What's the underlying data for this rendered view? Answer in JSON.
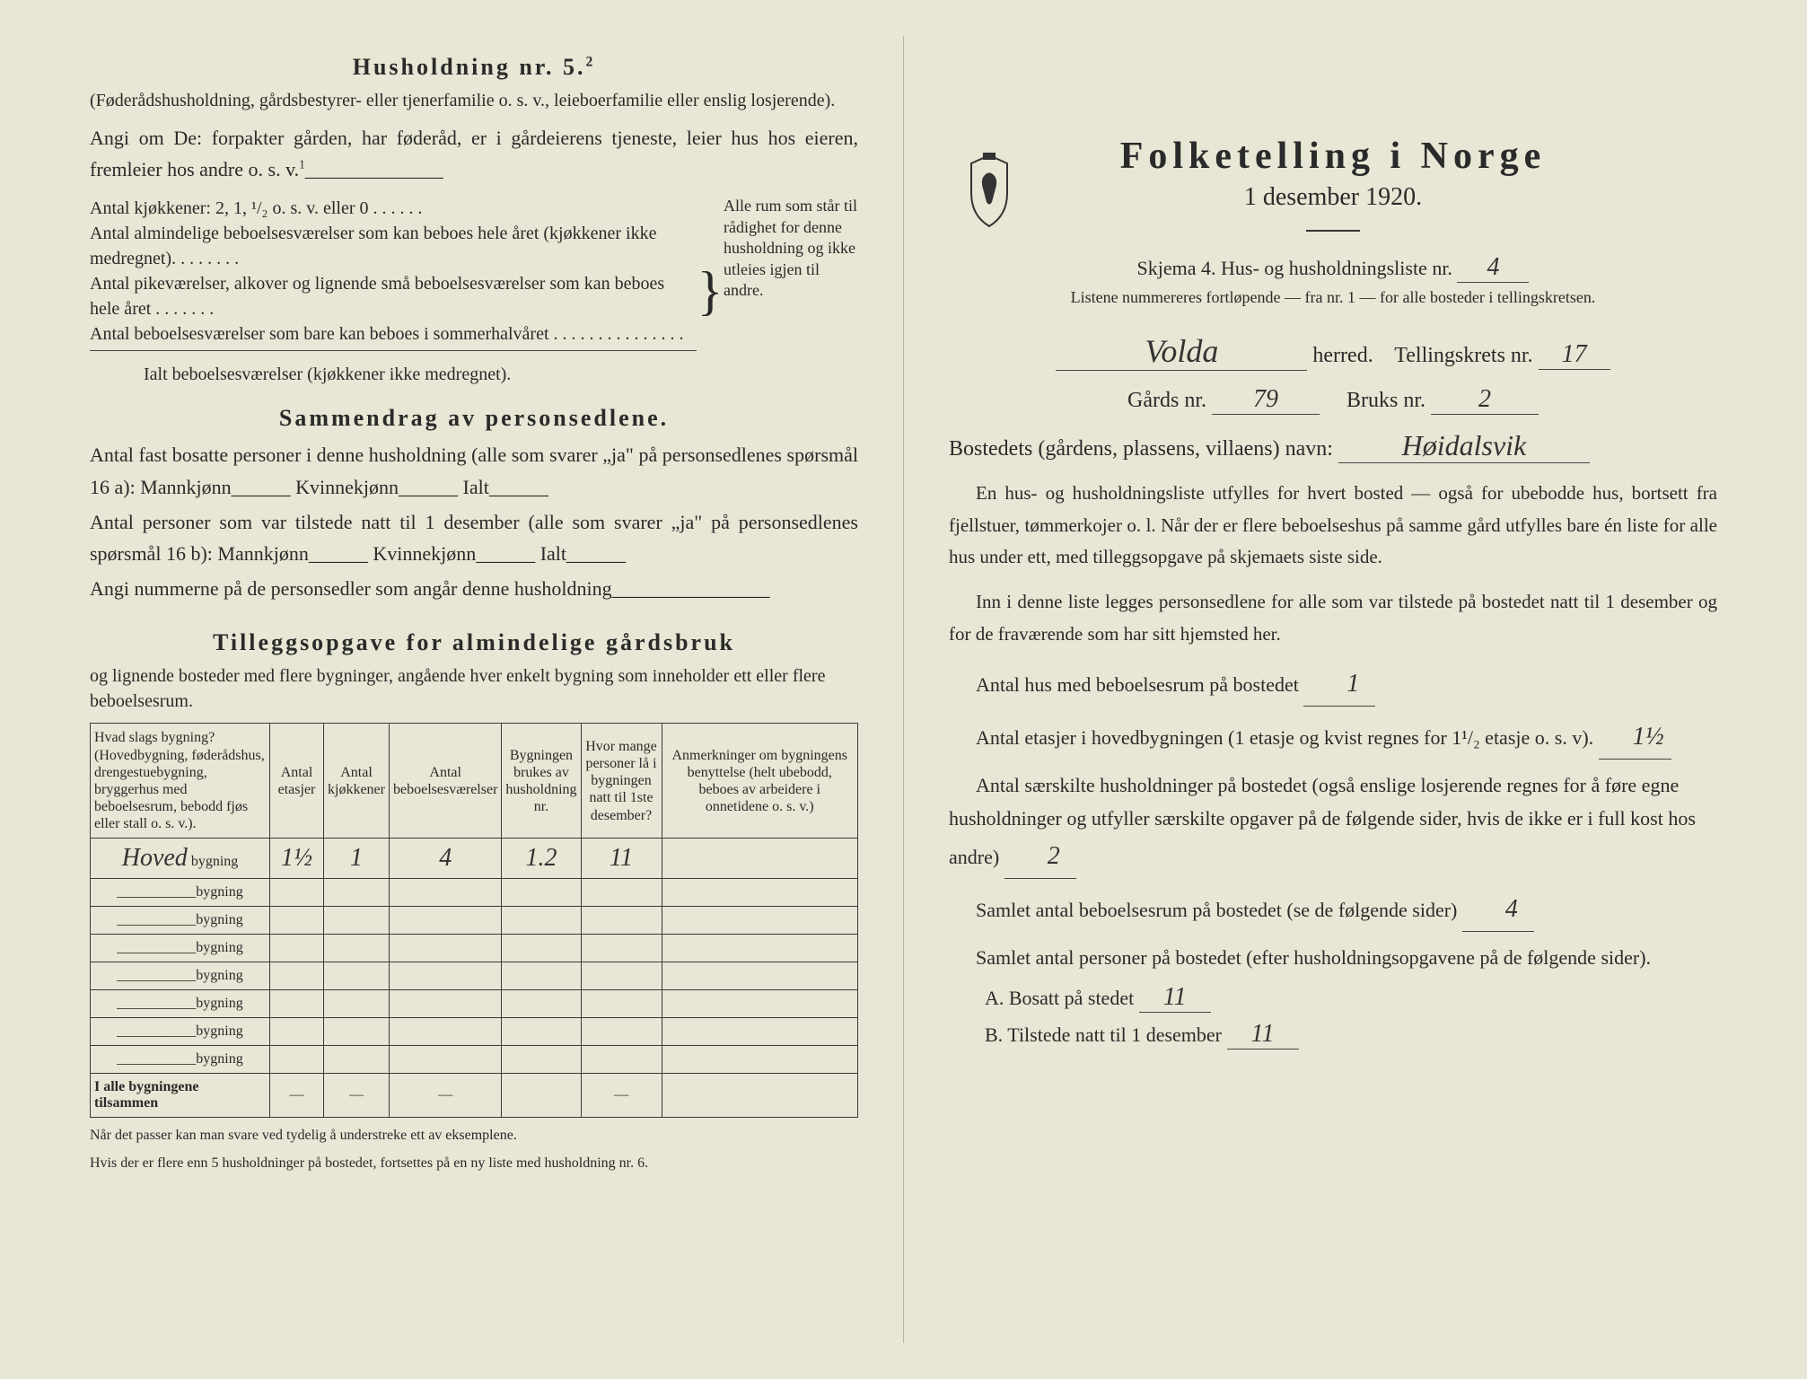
{
  "left": {
    "husholdning_title": "Husholdning nr. 5.",
    "husholdning_sup": "2",
    "husholdning_paren": "(Føderådshusholdning, gårdsbestyrer- eller tjenerfamilie o. s. v., leieboerfamilie eller enslig losjerende).",
    "angi_line": "Angi om De: forpakter gården, har føderåd, er i gårdeierens tjeneste, leier hus hos eieren, fremleier hos andre o. s. v.",
    "angi_sup": "1",
    "brace_items": [
      "Antal kjøkkener: 2, 1, ¹/₂ o. s. v. eller 0 . . . . . .",
      "Antal almindelige beboelsesværelser som kan beboes hele året (kjøkkener ikke medregnet). . . . . . . .",
      "Antal pikeværelser, alkover og lignende små beboelsesværelser som kan beboes hele året . . . . . . .",
      "Antal beboelsesværelser som bare kan beboes i sommerhalvåret . . . . . . . . . . . . . . .",
      "Ialt beboelsesværelser (kjøkkener ikke medregnet)."
    ],
    "brace_right_text": "Alle rum som står til rådighet for denne husholdning og ikke utleies igjen til andre.",
    "sammen_title": "Sammendrag av personsedlene.",
    "sammen_p1": "Antal fast bosatte personer i denne husholdning (alle som svarer „ja\" på personsedlenes spørsmål 16 a): Mannkjønn______ Kvinnekjønn______ Ialt______",
    "sammen_p2": "Antal personer som var tilstede natt til 1 desember (alle som svarer „ja\" på personsedlenes spørsmål 16 b): Mannkjønn______ Kvinnekjønn______ Ialt______",
    "sammen_p3": "Angi nummerne på de personsedler som angår denne husholdning________________",
    "tillegg_title": "Tilleggsopgave for almindelige gårdsbruk",
    "tillegg_sub": "og lignende bosteder med flere bygninger, angående hver enkelt bygning som inneholder ett eller flere beboelsesrum.",
    "table": {
      "headers": [
        "Hvad slags bygning?\n(Hovedbygning, føderådshus, drengestuebygning, bryggerhus med beboelsesrum, bebodd fjøs eller stall o. s. v.).",
        "Antal etasjer",
        "Antal kjøkkener",
        "Antal beboelsesværelser",
        "Bygningen brukes av husholdning nr.",
        "Hvor mange personer lå i bygningen natt til 1ste desember?",
        "Anmerkninger om bygningens benyttelse (helt ubebodd, beboes av arbeidere i onnetidene o. s. v.)"
      ],
      "rows": [
        {
          "label": "Hoved",
          "suffix": "bygning",
          "cells": [
            "1½",
            "1",
            "4",
            "1.2",
            "11",
            ""
          ]
        },
        {
          "label": "",
          "suffix": "bygning",
          "cells": [
            "",
            "",
            "",
            "",
            "",
            ""
          ]
        },
        {
          "label": "",
          "suffix": "bygning",
          "cells": [
            "",
            "",
            "",
            "",
            "",
            ""
          ]
        },
        {
          "label": "",
          "suffix": "bygning",
          "cells": [
            "",
            "",
            "",
            "",
            "",
            ""
          ]
        },
        {
          "label": "",
          "suffix": "bygning",
          "cells": [
            "",
            "",
            "",
            "",
            "",
            ""
          ]
        },
        {
          "label": "",
          "suffix": "bygning",
          "cells": [
            "",
            "",
            "",
            "",
            "",
            ""
          ]
        },
        {
          "label": "",
          "suffix": "bygning",
          "cells": [
            "",
            "",
            "",
            "",
            "",
            ""
          ]
        },
        {
          "label": "",
          "suffix": "bygning",
          "cells": [
            "",
            "",
            "",
            "",
            "",
            ""
          ]
        }
      ],
      "footer_label": "I alle bygningene tilsammen",
      "footer_cells": [
        "—",
        "—",
        "—",
        "",
        "—",
        ""
      ]
    },
    "footnote1": "Når det passer kan man svare ved tydelig å understreke ett av eksemplene.",
    "footnote2": "Hvis der er flere enn 5 husholdninger på bostedet, fortsettes på en ny liste med husholdning nr. 6."
  },
  "right": {
    "main_title": "Folketelling i Norge",
    "main_date": "1 desember 1920.",
    "skjema_label": "Skjema 4.  Hus- og husholdningsliste nr.",
    "skjema_nr": "4",
    "listene_text": "Listene nummereres fortløpende — fra nr. 1 — for alle bosteder i tellingskretsen.",
    "herred_value": "Volda",
    "herred_label": "herred.",
    "tellingskrets_label": "Tellingskrets nr.",
    "tellingskrets_nr": "17",
    "gards_label": "Gårds nr.",
    "gards_nr": "79",
    "bruks_label": "Bruks nr.",
    "bruks_nr": "2",
    "bostedets_label": "Bostedets (gårdens, plassens, villaens) navn:",
    "bostedets_value": "Høidalsvik",
    "para1": "En hus- og husholdningsliste utfylles for hvert bosted — også for ubebodde hus, bortsett fra fjellstuer, tømmerkojer o. l.  Når der er flere beboelseshus på samme gård utfylles bare én liste for alle hus under ett, med tilleggsopgave på skjemaets siste side.",
    "para2": "Inn i denne liste legges personsedlene for alle som var tilstede på bostedet natt til 1 desember og for de fraværende som har sitt hjemsted her.",
    "q1_label": "Antal hus med beboelsesrum på bostedet",
    "q1_value": "1",
    "q2_label": "Antal etasjer i hovedbygningen (1 etasje og kvist regnes for 1¹/₂ etasje o. s. v).",
    "q2_value": "1½",
    "q3_label": "Antal særskilte husholdninger på bostedet (også enslige losjerende regnes for å føre egne husholdninger og utfyller særskilte opgaver på de følgende sider, hvis de ikke er i full kost hos andre)",
    "q3_value": "2",
    "q4_label": "Samlet antal beboelsesrum på bostedet (se de følgende sider)",
    "q4_value": "4",
    "q5_label": "Samlet antal personer på bostedet (efter husholdningsopgavene på de følgende sider).",
    "qA_label": "A.  Bosatt på stedet",
    "qA_value": "11",
    "qB_label": "B.  Tilstede natt til 1 desember",
    "qB_value": "11"
  },
  "colors": {
    "bg": "#e8e6d4",
    "text": "#2a2a2a",
    "border": "#3a3a3a"
  }
}
